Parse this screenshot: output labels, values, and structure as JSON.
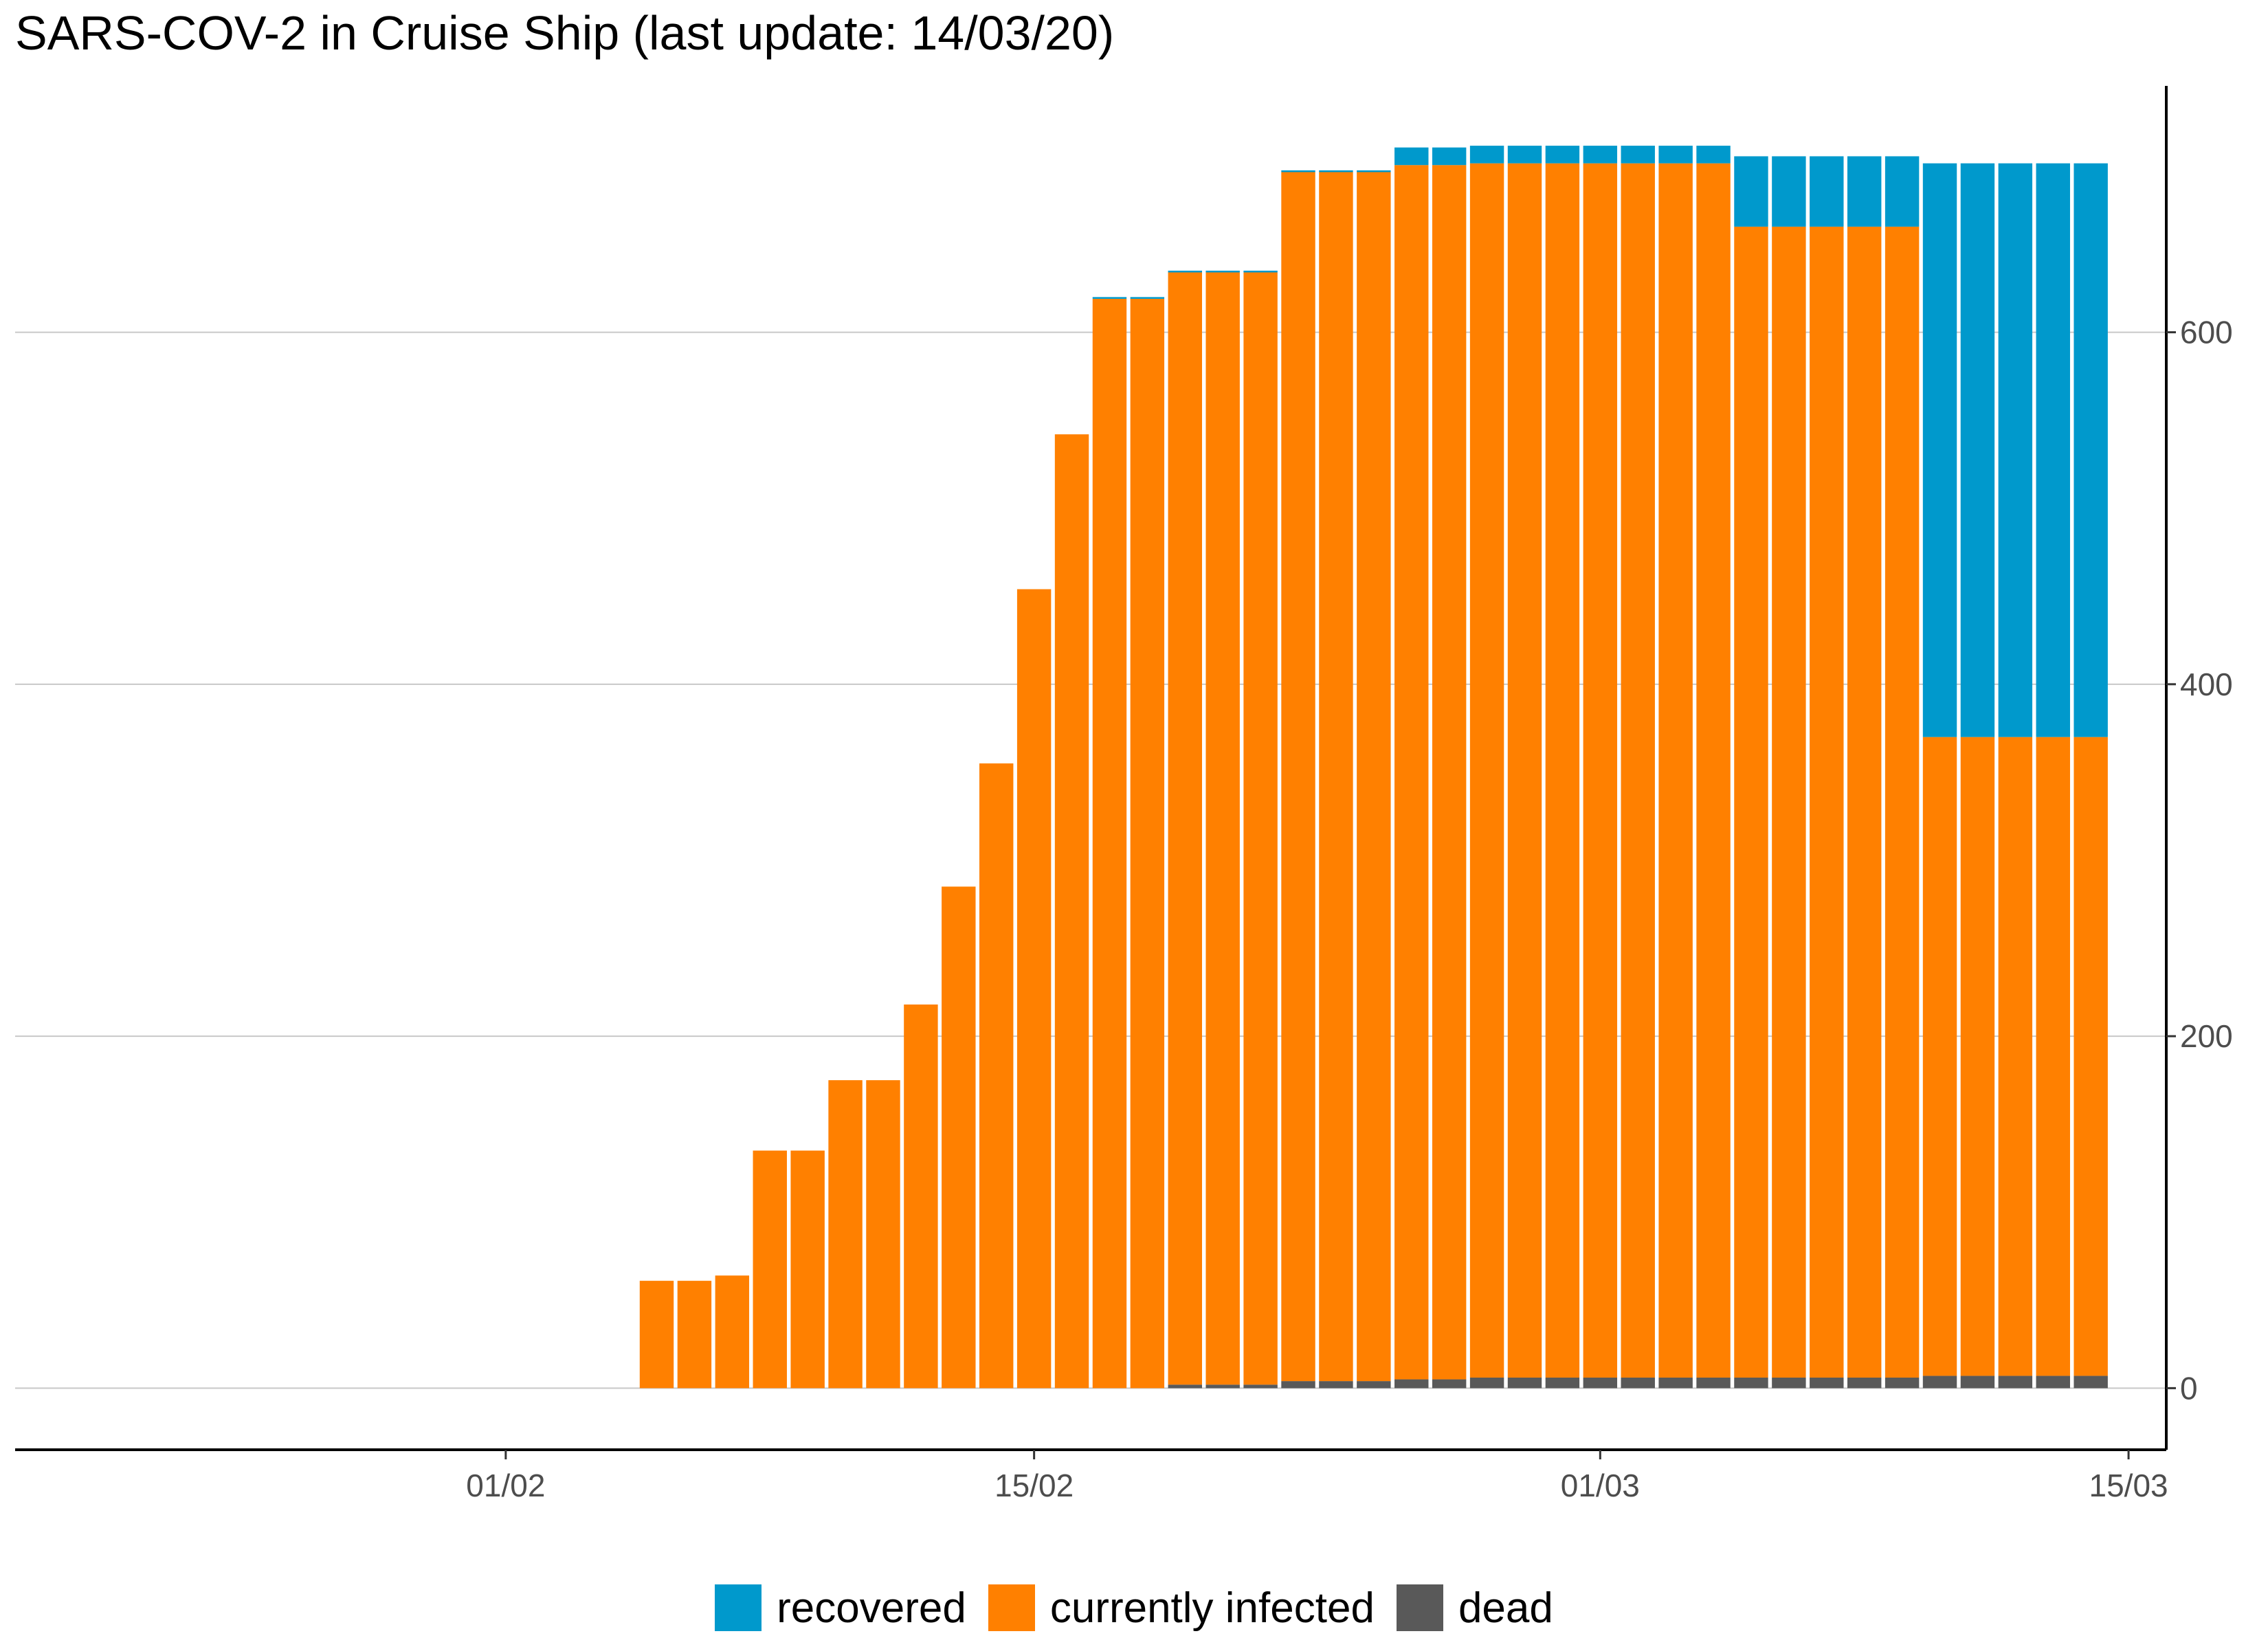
{
  "chart_data": {
    "type": "bar",
    "stacked": true,
    "title": "SARS-COV-2 in Cruise Ship (last update: 14/03/20)",
    "xlabel": "",
    "ylabel": "",
    "x_tick_labels": [
      "01/02",
      "15/02",
      "01/03",
      "15/03"
    ],
    "y_tick_labels": [
      "0",
      "200",
      "400",
      "600"
    ],
    "y_ticks": [
      0,
      200,
      400,
      600
    ],
    "ylim": [
      -35,
      740
    ],
    "y_axis_position": "right",
    "grid": "horizontal major",
    "legend_position": "bottom",
    "categories": [
      "05/02",
      "06/02",
      "07/02",
      "08/02",
      "09/02",
      "10/02",
      "11/02",
      "12/02",
      "13/02",
      "14/02",
      "15/02",
      "16/02",
      "17/02",
      "18/02",
      "19/02",
      "20/02",
      "21/02",
      "22/02",
      "23/02",
      "24/02",
      "25/02",
      "26/02",
      "27/02",
      "28/02",
      "29/02",
      "01/03",
      "02/03",
      "03/03",
      "04/03",
      "05/03",
      "06/03",
      "07/03",
      "08/03",
      "09/03",
      "10/03",
      "11/03",
      "12/03",
      "13/03",
      "14/03"
    ],
    "category_dates": [
      "2020-02-05",
      "2020-02-06",
      "2020-02-07",
      "2020-02-08",
      "2020-02-09",
      "2020-02-10",
      "2020-02-11",
      "2020-02-12",
      "2020-02-13",
      "2020-02-14",
      "2020-02-15",
      "2020-02-16",
      "2020-02-17",
      "2020-02-18",
      "2020-02-19",
      "2020-02-20",
      "2020-02-21",
      "2020-02-22",
      "2020-02-23",
      "2020-02-24",
      "2020-02-25",
      "2020-02-26",
      "2020-02-27",
      "2020-02-28",
      "2020-02-29",
      "2020-03-01",
      "2020-03-02",
      "2020-03-03",
      "2020-03-04",
      "2020-03-05",
      "2020-03-06",
      "2020-03-07",
      "2020-03-08",
      "2020-03-09",
      "2020-03-10",
      "2020-03-11",
      "2020-03-12",
      "2020-03-13",
      "2020-03-14"
    ],
    "x_range": [
      "2020-01-19",
      "2020-03-16"
    ],
    "x_ticks": [
      "2020-02-01",
      "2020-02-15",
      "2020-03-01",
      "2020-03-15"
    ],
    "series": [
      {
        "name": "dead",
        "color": "#595959",
        "values": [
          0,
          0,
          0,
          0,
          0,
          0,
          0,
          0,
          0,
          0,
          0,
          0,
          0,
          0,
          2,
          2,
          2,
          4,
          4,
          4,
          5,
          5,
          6,
          6,
          6,
          6,
          6,
          6,
          6,
          6,
          6,
          6,
          6,
          6,
          7,
          7,
          7,
          7,
          7
        ]
      },
      {
        "name": "currently infected",
        "color": "#ff8000",
        "values": [
          61,
          61,
          64,
          135,
          135,
          175,
          175,
          218,
          285,
          355,
          454,
          542,
          619,
          619,
          632,
          632,
          632,
          687,
          687,
          687,
          690,
          690,
          690,
          690,
          690,
          690,
          690,
          690,
          690,
          654,
          654,
          654,
          654,
          654,
          363,
          363,
          363,
          363,
          363
        ]
      },
      {
        "name": "recovered",
        "color": "#0099cc",
        "values": [
          0,
          0,
          0,
          0,
          0,
          0,
          0,
          0,
          0,
          0,
          0,
          0,
          1,
          1,
          1,
          1,
          1,
          1,
          1,
          1,
          10,
          10,
          10,
          10,
          10,
          10,
          10,
          10,
          10,
          40,
          40,
          40,
          40,
          40,
          326,
          326,
          326,
          326,
          326
        ]
      }
    ]
  },
  "legend": {
    "items": [
      {
        "label": "recovered",
        "color": "#0099cc"
      },
      {
        "label": "currently infected",
        "color": "#ff8000"
      },
      {
        "label": "dead",
        "color": "#595959"
      }
    ]
  }
}
